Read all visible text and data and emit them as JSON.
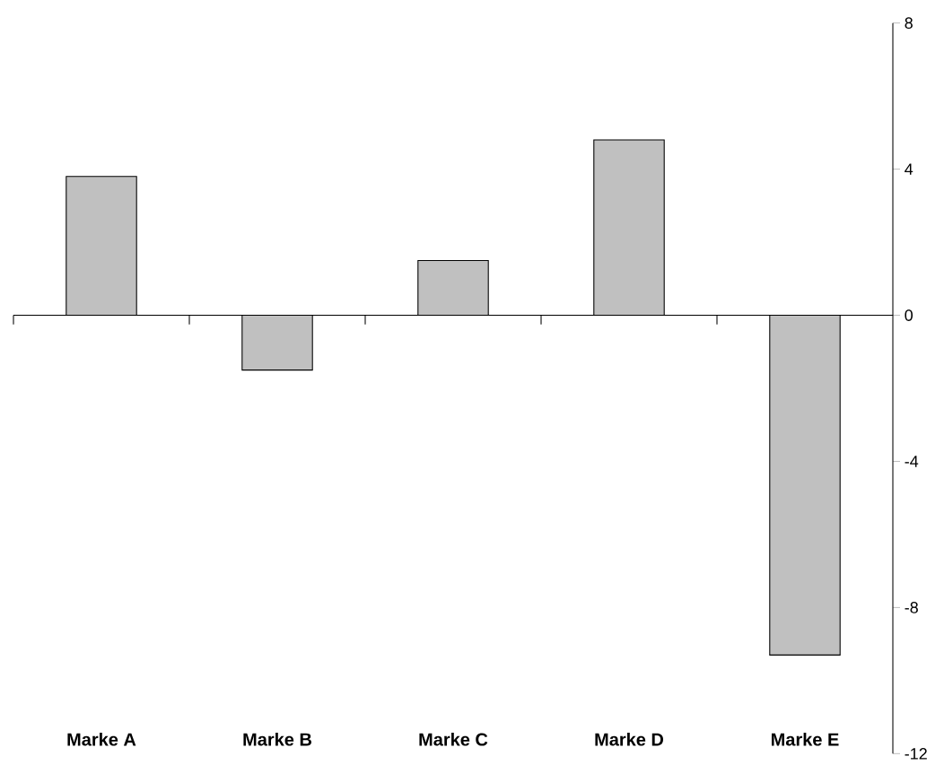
{
  "chart_data": {
    "type": "bar",
    "categories": [
      "Marke A",
      "Marke B",
      "Marke C",
      "Marke D",
      "Marke E"
    ],
    "values": [
      3.8,
      -1.5,
      1.5,
      4.8,
      -9.3
    ],
    "color": "#c0c0c0",
    "ylim": [
      -12,
      8
    ],
    "yticks": [
      -12,
      -8,
      -4,
      0,
      4,
      8
    ]
  }
}
